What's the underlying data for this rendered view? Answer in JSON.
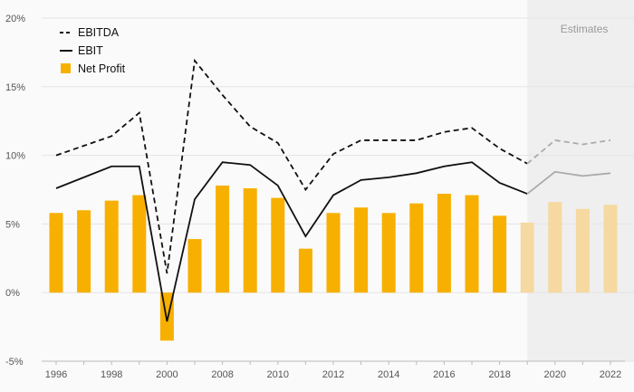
{
  "chart_data": {
    "type": "bar+line",
    "title": "",
    "xlabel": "",
    "ylabel": "",
    "x": [
      1996,
      1997,
      1998,
      1999,
      2000,
      2001,
      2008,
      2009,
      2010,
      2011,
      2012,
      2013,
      2014,
      2015,
      2016,
      2017,
      2018,
      2019,
      2020,
      2021,
      2022
    ],
    "x_tick_labels": [
      "1996",
      "1998",
      "2000",
      "2008",
      "2010",
      "2012",
      "2014",
      "2016",
      "2018",
      "2020",
      "2022"
    ],
    "y_tick_values": [
      -5,
      0,
      5,
      10,
      15,
      20
    ],
    "y_tick_labels": [
      "-5%",
      "0%",
      "5%",
      "10%",
      "15%",
      "20%"
    ],
    "ylim": [
      -5,
      20
    ],
    "grid": "horizontal",
    "legend_position": "top-left",
    "estimates_label": "Estimates",
    "estimates_start": 2019,
    "series": [
      {
        "name": "EBITDA",
        "kind": "line",
        "style": "dashed",
        "color": "#111111",
        "values": [
          10.0,
          10.7,
          11.4,
          13.1,
          1.4,
          16.9,
          14.4,
          12.1,
          10.9,
          7.5,
          10.1,
          11.1,
          11.1,
          11.1,
          11.7,
          12.0,
          10.5,
          9.4,
          11.1,
          10.8,
          11.1
        ]
      },
      {
        "name": "EBIT",
        "kind": "line",
        "style": "solid",
        "color": "#111111",
        "values": [
          7.6,
          8.4,
          9.2,
          9.2,
          -2.1,
          6.8,
          9.5,
          9.3,
          7.8,
          4.1,
          7.1,
          8.2,
          8.4,
          8.7,
          9.2,
          9.5,
          8.0,
          7.2,
          8.8,
          8.5,
          8.7
        ]
      },
      {
        "name": "Net Profit",
        "kind": "bar",
        "color": "#F8B000",
        "values": [
          5.8,
          6.0,
          6.7,
          7.1,
          -3.5,
          3.9,
          7.8,
          7.6,
          6.9,
          3.2,
          5.8,
          6.2,
          5.8,
          6.5,
          7.2,
          7.1,
          5.6,
          5.1,
          6.6,
          6.1,
          6.4
        ]
      }
    ],
    "estimate_colors": {
      "line": "#aaaaaa",
      "bar": "#F6D9A0",
      "shade": "#EFEFEF"
    }
  }
}
